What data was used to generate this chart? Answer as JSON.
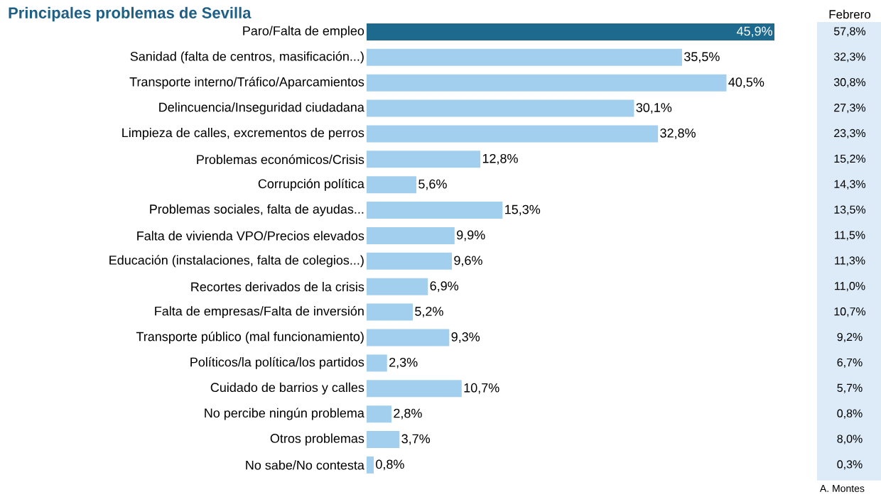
{
  "chart_data": {
    "type": "bar",
    "orientation": "horizontal",
    "title": "Principales problemas de Sevilla",
    "categories": [
      "Paro/Falta de empleo",
      "Sanidad (falta de centros, masificación...)",
      "Transporte interno/Tráfico/Aparcamientos",
      "Delincuencia/Inseguridad ciudadana",
      "Limpieza de calles, excrementos de perros",
      "Problemas económicos/Crisis",
      "Corrupción política",
      "Problemas sociales, falta de ayudas...",
      "Falta de vivienda VPO/Precios elevados",
      "Educación (instalaciones, falta de colegios...)",
      "Recortes derivados de la crisis",
      "Falta de empresas/Falta de inversión",
      "Transporte público (mal funcionamiento)",
      "Políticos/la política/los partidos",
      "Cuidado de barrios y calles",
      "No percibe ningún problema",
      "Otros problemas",
      "No sabe/No contesta"
    ],
    "values": [
      45.9,
      35.5,
      40.5,
      30.1,
      32.8,
      12.8,
      5.6,
      15.3,
      9.9,
      9.6,
      6.9,
      5.2,
      9.3,
      2.3,
      10.7,
      2.8,
      3.7,
      0.8
    ],
    "value_labels": [
      "45,9%",
      "35,5%",
      "40,5%",
      "30,1%",
      "32,8%",
      "12,8%",
      "5,6%",
      "15,3%",
      "9,9%",
      "9,6%",
      "6,9%",
      "5,2%",
      "9,3%",
      "2,3%",
      "10,7%",
      "2,8%",
      "3,7%",
      "0,8%"
    ],
    "colors": [
      "#1d6a8e",
      "#a3cfee",
      "#a3cfee",
      "#a3cfee",
      "#a3cfee",
      "#a3cfee",
      "#a3cfee",
      "#a3cfee",
      "#a3cfee",
      "#a3cfee",
      "#a3cfee",
      "#a3cfee",
      "#a3cfee",
      "#a3cfee",
      "#a3cfee",
      "#a3cfee",
      "#a3cfee",
      "#a3cfee"
    ],
    "annotations": [
      "Febrero",
      "57,8%",
      "32,3%",
      "30,8%",
      "27,3%",
      "23,3%",
      "15,2%",
      "14,3%",
      "13,5%",
      "11,5%",
      "11,3%",
      "11,0%",
      "10,7%",
      "9,2%",
      "6,7%",
      "5,7%",
      "0,8%",
      "8,0%",
      "0,3%",
      "A. Montes"
    ]
  }
}
